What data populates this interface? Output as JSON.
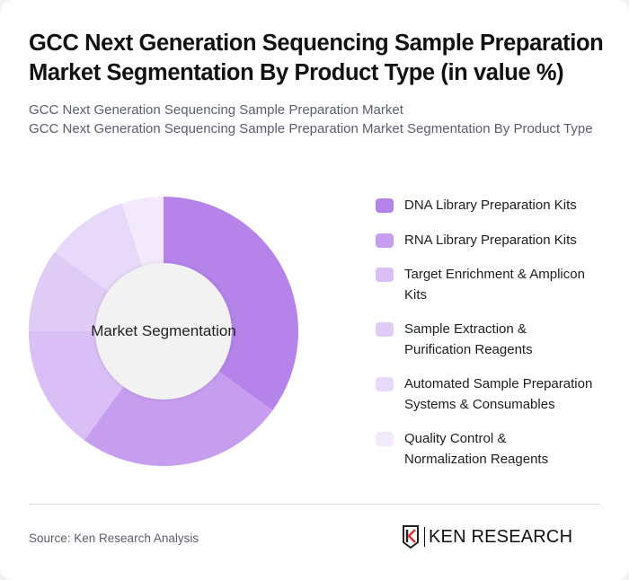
{
  "header": {
    "title": "GCC Next Generation Sequencing Sample Preparation Market Segmentation By Product Type (in value %)",
    "subtitle_1": "GCC Next Generation Sequencing Sample Preparation Market",
    "subtitle_2": "GCC Next Generation Sequencing Sample Preparation Market Segmentation By Product Type"
  },
  "chart": {
    "center_label": "Market Segmentation"
  },
  "legend": {
    "items": [
      {
        "label": "DNA Library Preparation Kits",
        "color": "#b583e9"
      },
      {
        "label": "RNA Library Preparation Kits",
        "color": "#c69def"
      },
      {
        "label": "Target Enrichment & Amplicon Kits",
        "color": "#d9bff5"
      },
      {
        "label": "Sample Extraction & Purification Reagents",
        "color": "#e0caf6"
      },
      {
        "label": "Automated Sample Preparation Systems & Consumables",
        "color": "#e8d8f9"
      },
      {
        "label": "Quality Control & Normalization Reagents",
        "color": "#f2eafc"
      }
    ]
  },
  "footer": {
    "source": "Source: Ken Research Analysis",
    "logo_text": "KEN RESEARCH"
  },
  "chart_data": {
    "type": "pie",
    "subtype": "donut",
    "title": "GCC Next Generation Sequencing Sample Preparation Market Segmentation By Product Type (in value %)",
    "center_label": "Market Segmentation",
    "categories": [
      "DNA Library Preparation Kits",
      "RNA Library Preparation Kits",
      "Target Enrichment & Amplicon Kits",
      "Sample Extraction & Purification Reagents",
      "Automated Sample Preparation Systems & Consumables",
      "Quality Control & Normalization Reagents"
    ],
    "values": [
      35,
      25,
      15,
      10,
      10,
      5
    ],
    "colors": [
      "#b583e9",
      "#c69def",
      "#d9bff5",
      "#e0caf6",
      "#e8d8f9",
      "#f2eafc"
    ],
    "unit": "%",
    "legend_position": "right",
    "start_angle": "top, clockwise"
  }
}
